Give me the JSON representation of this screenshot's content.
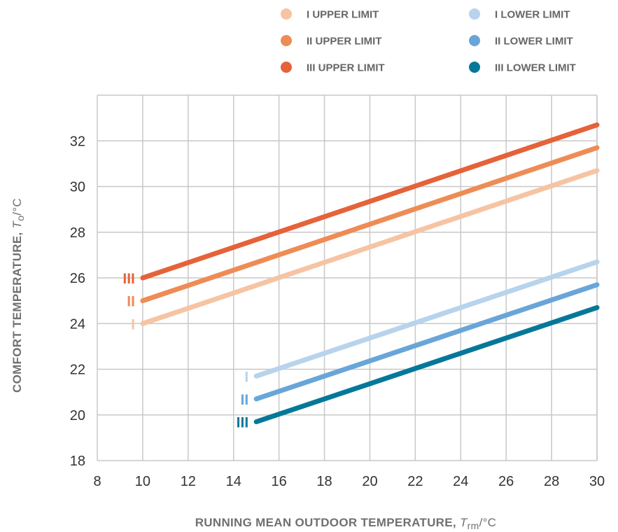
{
  "chart_data": {
    "type": "line",
    "xlabel_main": "RUNNING MEAN OUTDOOR TEMPERATURE, ",
    "xlabel_symbol": "T",
    "xlabel_sub": "rm",
    "xlabel_unit": "/°C",
    "ylabel_main": "COMFORT TEMPERATURE, ",
    "ylabel_symbol": "T",
    "ylabel_sub": "o",
    "ylabel_unit": "/°C",
    "xlim": [
      8,
      30
    ],
    "ylim": [
      18,
      34
    ],
    "xticks": [
      8,
      10,
      12,
      14,
      16,
      18,
      20,
      22,
      24,
      26,
      28,
      30
    ],
    "yticks": [
      18,
      20,
      22,
      24,
      26,
      28,
      30,
      32
    ],
    "grid": true,
    "legend_position": "top-right",
    "series": [
      {
        "name": "I UPPER LIMIT",
        "category": "I",
        "color": "#f6c4a3",
        "x": [
          10,
          30
        ],
        "y": [
          24,
          30.7
        ]
      },
      {
        "name": "II UPPER LIMIT",
        "category": "II",
        "color": "#ee8c56",
        "x": [
          10,
          30
        ],
        "y": [
          25,
          31.7
        ]
      },
      {
        "name": "III UPPER LIMIT",
        "category": "III",
        "color": "#e5623a",
        "x": [
          10,
          30
        ],
        "y": [
          26,
          32.7
        ]
      },
      {
        "name": "I LOWER LIMIT",
        "category": "I",
        "color": "#b8d3ec",
        "x": [
          15,
          30
        ],
        "y": [
          21.7,
          26.7
        ]
      },
      {
        "name": "II LOWER LIMIT",
        "category": "II",
        "color": "#69a5d8",
        "x": [
          15,
          30
        ],
        "y": [
          20.7,
          25.7
        ]
      },
      {
        "name": "III LOWER LIMIT",
        "category": "III",
        "color": "#057899",
        "x": [
          15,
          30
        ],
        "y": [
          19.7,
          24.7
        ]
      }
    ]
  }
}
